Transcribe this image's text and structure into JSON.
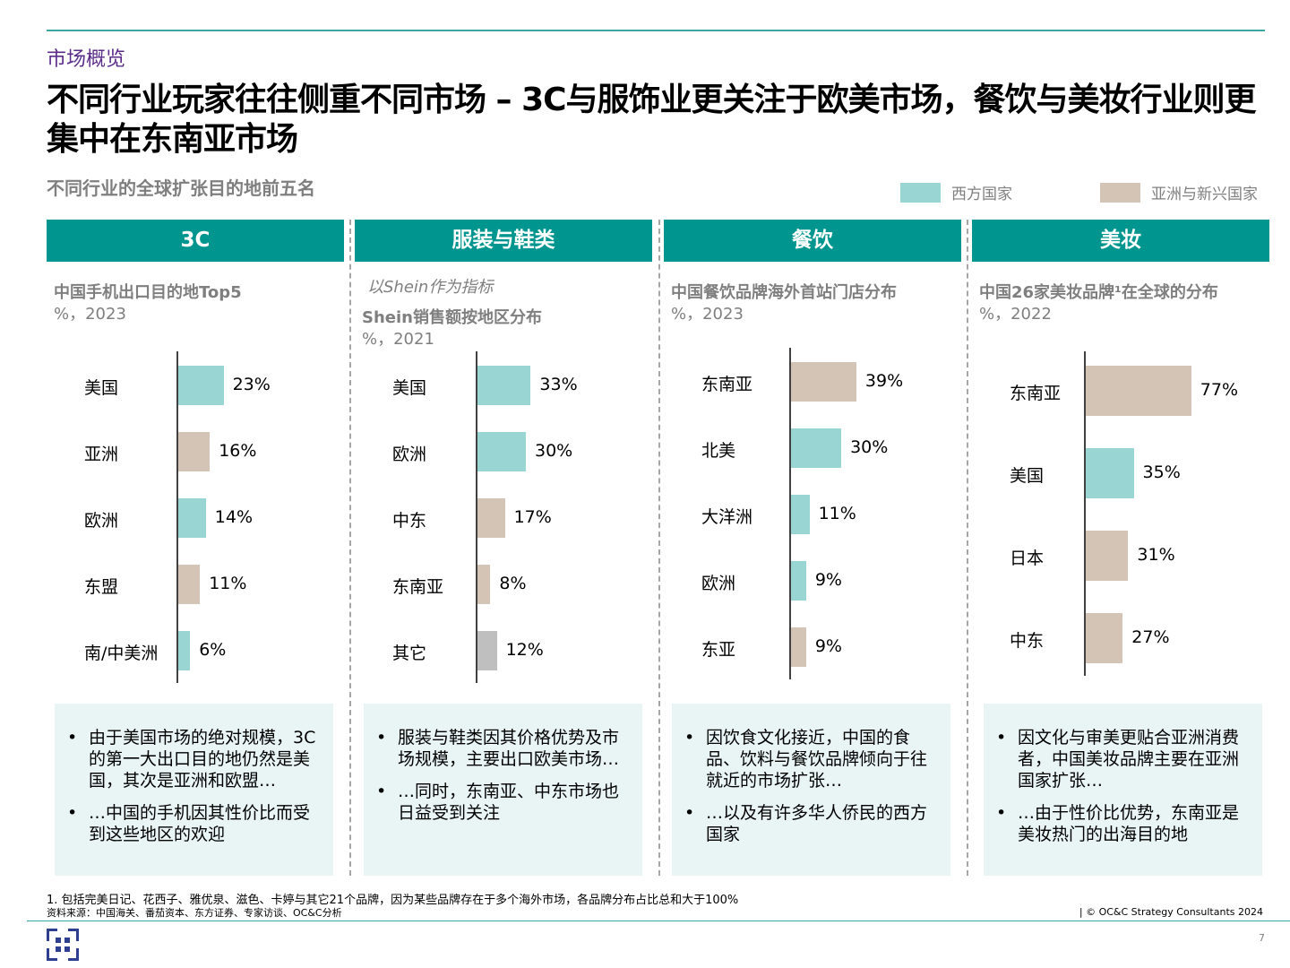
{
  "header": {
    "section": "市场概览",
    "title": "不同行业玩家往往侧重不同市场 – 3C与服饰业更关注于欧美市场，餐饮与美妆行业则更集中在东南亚市场",
    "subtitle": "不同行业的全球扩张目的地前五名"
  },
  "legend": [
    {
      "label": "西方国家",
      "color": "#99d5d3"
    },
    {
      "label": "亚洲与新兴国家",
      "color": "#d3c4b6"
    }
  ],
  "colors": {
    "western": "#99d5d3",
    "asian": "#d3c4b6",
    "other": "#bfbfbf",
    "header": "#00968f",
    "section": "#5b2d8a"
  },
  "chart_data": [
    {
      "type": "bar",
      "orientation": "horizontal",
      "panel": "3C",
      "title": "中国手机出口目的地Top5",
      "unit": "%，2023",
      "categories": [
        "美国",
        "亚洲",
        "欧洲",
        "东盟",
        "南/中美洲"
      ],
      "values": [
        23,
        16,
        14,
        11,
        6
      ],
      "labels": [
        "23%",
        "16%",
        "14%",
        "11%",
        "6%"
      ],
      "groups": [
        "western",
        "asian",
        "western",
        "asian",
        "western"
      ]
    },
    {
      "type": "bar",
      "orientation": "horizontal",
      "panel": "服装与鞋类",
      "note": "以Shein作为指标",
      "title": "Shein销售额按地区分布",
      "unit": "%，2021",
      "categories": [
        "美国",
        "欧洲",
        "中东",
        "东南亚",
        "其它"
      ],
      "values": [
        33,
        30,
        17,
        8,
        12
      ],
      "labels": [
        "33%",
        "30%",
        "17%",
        "8%",
        "12%"
      ],
      "groups": [
        "western",
        "western",
        "asian",
        "asian",
        "other"
      ]
    },
    {
      "type": "bar",
      "orientation": "horizontal",
      "panel": "餐饮",
      "title": "中国餐饮品牌海外首站门店分布",
      "unit": "%，2023",
      "categories": [
        "东南亚",
        "北美",
        "大洋洲",
        "欧洲",
        "东亚"
      ],
      "values": [
        39,
        30,
        11,
        9,
        9
      ],
      "labels": [
        "39%",
        "30%",
        "11%",
        "9%",
        "9%"
      ],
      "groups": [
        "asian",
        "western",
        "western",
        "western",
        "asian"
      ]
    },
    {
      "type": "bar",
      "orientation": "horizontal",
      "panel": "美妆",
      "title": "中国26家美妆品牌¹在全球的分布",
      "unit": "%，2022",
      "categories": [
        "东南亚",
        "美国",
        "日本",
        "中东"
      ],
      "values": [
        77,
        35,
        31,
        27
      ],
      "labels": [
        "77%",
        "35%",
        "31%",
        "27%"
      ],
      "groups": [
        "asian",
        "western",
        "asian",
        "asian"
      ]
    }
  ],
  "bullets": [
    [
      "由于美国市场的绝对规模，3C的第一大出口目的地仍然是美国，其次是亚洲和欧盟…",
      "…中国的手机因其性价比而受到这些地区的欢迎"
    ],
    [
      "服装与鞋类因其价格优势及市场规模，主要出口欧美市场…",
      "…同时，东南亚、中东市场也日益受到关注"
    ],
    [
      "因饮食文化接近，中国的食品、饮料与餐饮品牌倾向于往就近的市场扩张…",
      "…以及有许多华人侨民的西方国家"
    ],
    [
      "因文化与审美更贴合亚洲消费者，中国美妆品牌主要在亚洲国家扩张…",
      "…由于性价比优势，东南亚是美妆热门的出海目的地"
    ]
  ],
  "footer": {
    "note": "1. 包括完美日记、花西子、雅优泉、滋色、卡婷与其它21个品牌，因为某些品牌存在于多个海外市场，各品牌分布占比总和大于100%",
    "source": "资料来源：中国海关、番茄资本、东方证券、专家访谈、OC&C分析",
    "copyright": "| © OC&C Strategy Consultants 2024",
    "page": "7"
  }
}
